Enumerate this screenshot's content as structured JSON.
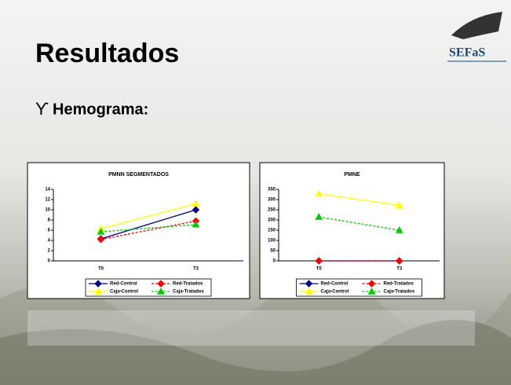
{
  "title": "Resultados",
  "bullet": {
    "symbol": "ϒ",
    "text": "Hemograma:"
  },
  "logo": {
    "text": "SEFaS"
  },
  "chart_data": [
    {
      "type": "line",
      "title": "PMNN SEGMENTADOS",
      "categories": [
        "T0",
        "T3"
      ],
      "ylim": [
        0,
        14
      ],
      "yticks": [
        0,
        2,
        4,
        6,
        8,
        10,
        12,
        14
      ],
      "grid": false,
      "series": [
        {
          "name": "Red-Control",
          "color": "#000080",
          "dashed": false,
          "marker": "diamond",
          "values": [
            4.3,
            10
          ]
        },
        {
          "name": "Red-Tratados",
          "color": "#ff0000",
          "dashed": true,
          "marker": "diamond",
          "values": [
            4.2,
            7.8
          ]
        },
        {
          "name": "Caja-Control",
          "color": "#ffff00",
          "dashed": false,
          "marker": "triangle",
          "values": [
            6.3,
            11.2
          ]
        },
        {
          "name": "Caja-Tratados",
          "color": "#00cc00",
          "dashed": true,
          "marker": "triangle",
          "values": [
            5.7,
            7.1
          ]
        }
      ]
    },
    {
      "type": "line",
      "title": "PMNE",
      "categories": [
        "T0",
        "T3"
      ],
      "ylim": [
        0,
        350
      ],
      "yticks": [
        0,
        50,
        100,
        150,
        200,
        250,
        300,
        350
      ],
      "grid": false,
      "series": [
        {
          "name": "Red-Control",
          "color": "#000080",
          "dashed": false,
          "marker": "diamond",
          "values": [
            0,
            0
          ]
        },
        {
          "name": "Red-Tratados",
          "color": "#ff0000",
          "dashed": true,
          "marker": "diamond",
          "values": [
            0,
            0
          ]
        },
        {
          "name": "Caja-Control",
          "color": "#ffff00",
          "dashed": false,
          "marker": "triangle",
          "values": [
            328,
            272
          ]
        },
        {
          "name": "Caja-Tratados",
          "color": "#00cc00",
          "dashed": true,
          "marker": "triangle",
          "values": [
            215,
            150
          ]
        }
      ]
    }
  ]
}
